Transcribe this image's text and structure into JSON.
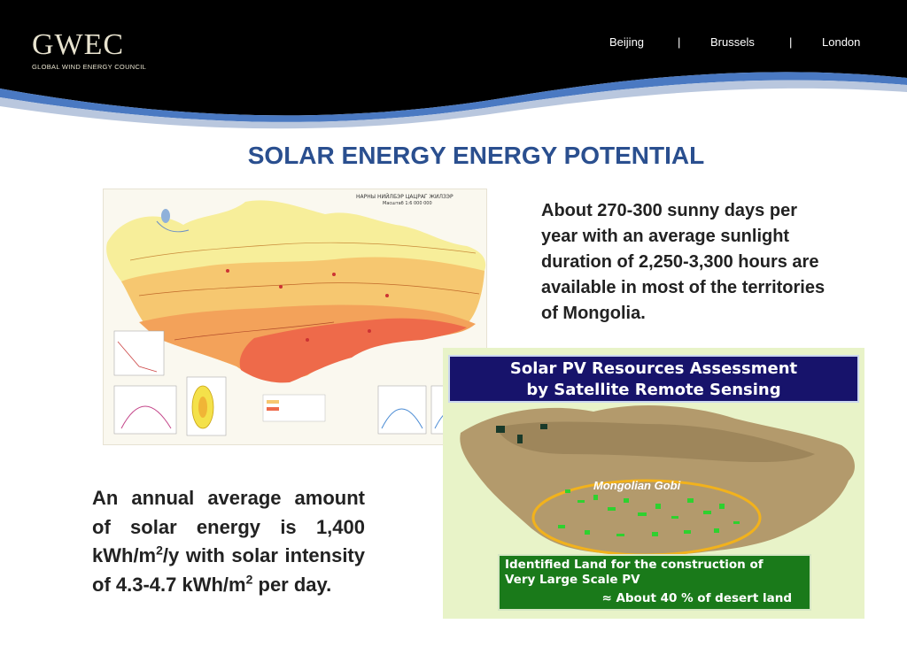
{
  "header": {
    "logo_text": "GWEC",
    "logo_subtitle": "GLOBAL WIND ENERGY COUNCIL",
    "cities": [
      "Beijing",
      "Brussels",
      "London"
    ],
    "separator": "|"
  },
  "slide": {
    "title": "SOLAR ENERGY ENERGY POTENTIAL",
    "top_text": "About 270-300 sunny days per year with an average sunlight duration of 2,250-3,300 hours are available in most of the territories of Mongolia.",
    "bottom_text": {
      "part1": "An annual average amount of solar energy is 1,400 kWh/m",
      "sup1": "2",
      "part2": "/y with solar intensity of 4.3-4.7 kWh/m",
      "sup2": "2",
      "part3": " per day."
    }
  },
  "map_left": {
    "map_title": "НАРНЫ НИЙЛБЭР ЦАЦРАГ ЖИЛЗЭР",
    "map_scale": "Масштаб 1:6 000 000"
  },
  "map_right": {
    "banner_line1": "Solar PV Resources Assessment",
    "banner_line2": "by Satellite Remote Sensing",
    "gobi_label": "Mongolian Gobi",
    "box_line1": "Identified Land for the construction of",
    "box_line2": "Very Large Scale PV",
    "box_line3": "≈ About 40 % of desert land"
  },
  "colors": {
    "header_bg": "#000000",
    "title_blue": "#2a4f8f",
    "banner_navy": "#17136b",
    "box_green": "#1a7a1a"
  }
}
